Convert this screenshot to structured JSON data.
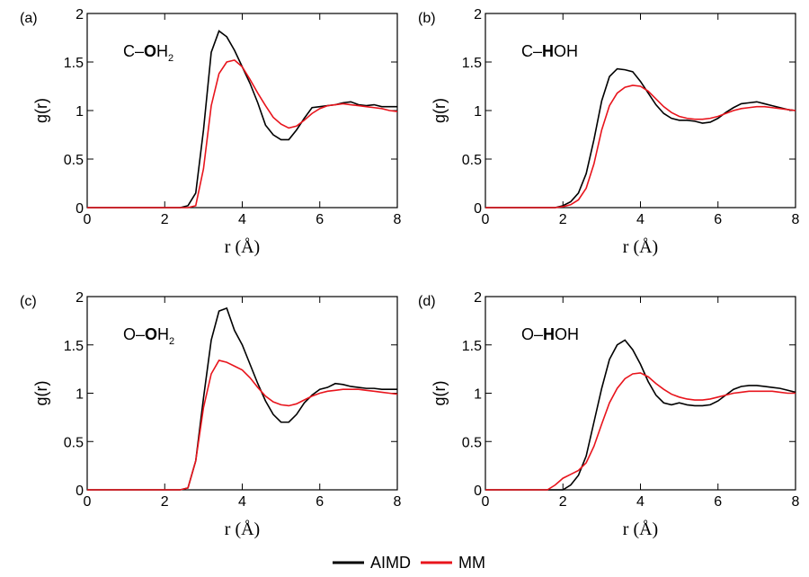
{
  "chart_data": [
    {
      "type": "line",
      "panel": "(a)",
      "annotation": {
        "prefix": "C–",
        "bold": "O",
        "suffix": "H",
        "subscript": "2"
      },
      "xlabel": "r (Å)",
      "ylabel": "g(r)",
      "xlim": [
        0,
        8
      ],
      "ylim": [
        0,
        2
      ],
      "xticks": [
        0,
        2,
        4,
        6,
        8
      ],
      "yticks": [
        0,
        0.5,
        1,
        1.5,
        2
      ],
      "x": [
        0,
        0.2,
        0.4,
        0.6,
        0.8,
        1,
        1.2,
        1.4,
        1.6,
        1.8,
        2,
        2.2,
        2.4,
        2.6,
        2.8,
        3,
        3.2,
        3.4,
        3.6,
        3.8,
        4,
        4.2,
        4.4,
        4.6,
        4.8,
        5,
        5.2,
        5.4,
        5.6,
        5.8,
        6,
        6.2,
        6.4,
        6.6,
        6.8,
        7,
        7.2,
        7.4,
        7.6,
        7.8,
        8
      ],
      "series": [
        {
          "name": "AIMD",
          "color": "#000000",
          "values": [
            0,
            0,
            0,
            0,
            0,
            0,
            0,
            0,
            0,
            0,
            0,
            0,
            0,
            0.02,
            0.15,
            0.8,
            1.6,
            1.82,
            1.76,
            1.62,
            1.45,
            1.28,
            1.08,
            0.85,
            0.75,
            0.7,
            0.7,
            0.8,
            0.92,
            1.03,
            1.04,
            1.05,
            1.06,
            1.08,
            1.09,
            1.06,
            1.05,
            1.06,
            1.04,
            1.04,
            1.04
          ]
        },
        {
          "name": "MM",
          "color": "#e8141c",
          "values": [
            0,
            0,
            0,
            0,
            0,
            0,
            0,
            0,
            0,
            0,
            0,
            0,
            0,
            0,
            0.02,
            0.4,
            1.05,
            1.38,
            1.5,
            1.52,
            1.45,
            1.32,
            1.18,
            1.05,
            0.93,
            0.86,
            0.82,
            0.84,
            0.9,
            0.97,
            1.02,
            1.05,
            1.06,
            1.07,
            1.06,
            1.05,
            1.04,
            1.03,
            1.02,
            1.0,
            0.99
          ]
        }
      ]
    },
    {
      "type": "line",
      "panel": "(b)",
      "annotation": {
        "prefix": "C–",
        "bold": "H",
        "suffix": "OH"
      },
      "xlabel": "r (Å)",
      "ylabel": "g(r)",
      "xlim": [
        0,
        8
      ],
      "ylim": [
        0,
        2
      ],
      "xticks": [
        0,
        2,
        4,
        6,
        8
      ],
      "yticks": [
        0,
        0.5,
        1,
        1.5,
        2
      ],
      "x": [
        0,
        0.2,
        0.4,
        0.6,
        0.8,
        1,
        1.2,
        1.4,
        1.6,
        1.8,
        2,
        2.2,
        2.4,
        2.6,
        2.8,
        3,
        3.2,
        3.4,
        3.6,
        3.8,
        4,
        4.2,
        4.4,
        4.6,
        4.8,
        5,
        5.2,
        5.4,
        5.6,
        5.8,
        6,
        6.2,
        6.4,
        6.6,
        6.8,
        7,
        7.2,
        7.4,
        7.6,
        7.8,
        8
      ],
      "series": [
        {
          "name": "AIMD",
          "color": "#000000",
          "values": [
            0,
            0,
            0,
            0,
            0,
            0,
            0,
            0,
            0,
            0,
            0.02,
            0.06,
            0.15,
            0.35,
            0.7,
            1.1,
            1.35,
            1.43,
            1.42,
            1.4,
            1.3,
            1.18,
            1.06,
            0.97,
            0.92,
            0.9,
            0.9,
            0.89,
            0.87,
            0.88,
            0.92,
            0.98,
            1.03,
            1.07,
            1.08,
            1.09,
            1.07,
            1.05,
            1.03,
            1.01,
            1.0
          ]
        },
        {
          "name": "MM",
          "color": "#e8141c",
          "values": [
            0,
            0,
            0,
            0,
            0,
            0,
            0,
            0,
            0,
            0,
            0.01,
            0.03,
            0.08,
            0.2,
            0.45,
            0.8,
            1.05,
            1.18,
            1.24,
            1.26,
            1.25,
            1.2,
            1.12,
            1.04,
            0.98,
            0.94,
            0.92,
            0.91,
            0.91,
            0.92,
            0.94,
            0.97,
            1.0,
            1.02,
            1.03,
            1.04,
            1.04,
            1.03,
            1.02,
            1.01,
            1.0
          ]
        }
      ]
    },
    {
      "type": "line",
      "panel": "(c)",
      "annotation": {
        "prefix": "O–",
        "bold": "O",
        "suffix": "H",
        "subscript": "2"
      },
      "xlabel": "r (Å)",
      "ylabel": "g(r)",
      "xlim": [
        0,
        8
      ],
      "ylim": [
        0,
        2
      ],
      "xticks": [
        0,
        2,
        4,
        6,
        8
      ],
      "yticks": [
        0,
        0.5,
        1,
        1.5,
        2
      ],
      "x": [
        0,
        0.2,
        0.4,
        0.6,
        0.8,
        1,
        1.2,
        1.4,
        1.6,
        1.8,
        2,
        2.2,
        2.4,
        2.6,
        2.8,
        3,
        3.2,
        3.4,
        3.6,
        3.8,
        4,
        4.2,
        4.4,
        4.6,
        4.8,
        5,
        5.2,
        5.4,
        5.6,
        5.8,
        6,
        6.2,
        6.4,
        6.6,
        6.8,
        7,
        7.2,
        7.4,
        7.6,
        7.8,
        8
      ],
      "series": [
        {
          "name": "AIMD",
          "color": "#000000",
          "values": [
            0,
            0,
            0,
            0,
            0,
            0,
            0,
            0,
            0,
            0,
            0,
            0,
            0,
            0.02,
            0.3,
            0.95,
            1.55,
            1.85,
            1.88,
            1.65,
            1.5,
            1.3,
            1.1,
            0.92,
            0.78,
            0.7,
            0.7,
            0.78,
            0.9,
            0.98,
            1.04,
            1.06,
            1.1,
            1.09,
            1.07,
            1.06,
            1.05,
            1.05,
            1.04,
            1.04,
            1.04
          ]
        },
        {
          "name": "MM",
          "color": "#e8141c",
          "values": [
            0,
            0,
            0,
            0,
            0,
            0,
            0,
            0,
            0,
            0,
            0,
            0,
            0,
            0.02,
            0.3,
            0.85,
            1.2,
            1.34,
            1.32,
            1.28,
            1.24,
            1.16,
            1.06,
            0.97,
            0.91,
            0.88,
            0.87,
            0.89,
            0.93,
            0.97,
            1.0,
            1.02,
            1.03,
            1.04,
            1.04,
            1.04,
            1.03,
            1.02,
            1.01,
            1.0,
            0.99
          ]
        }
      ]
    },
    {
      "type": "line",
      "panel": "(d)",
      "annotation": {
        "prefix": "O–",
        "bold": "H",
        "suffix": "OH"
      },
      "xlabel": "r (Å)",
      "ylabel": "g(r)",
      "xlim": [
        0,
        8
      ],
      "ylim": [
        0,
        2
      ],
      "xticks": [
        0,
        2,
        4,
        6,
        8
      ],
      "yticks": [
        0,
        0.5,
        1,
        1.5,
        2
      ],
      "x": [
        0,
        0.2,
        0.4,
        0.6,
        0.8,
        1,
        1.2,
        1.4,
        1.6,
        1.8,
        2,
        2.2,
        2.4,
        2.6,
        2.8,
        3,
        3.2,
        3.4,
        3.6,
        3.8,
        4,
        4.2,
        4.4,
        4.6,
        4.8,
        5,
        5.2,
        5.4,
        5.6,
        5.8,
        6,
        6.2,
        6.4,
        6.6,
        6.8,
        7,
        7.2,
        7.4,
        7.6,
        7.8,
        8
      ],
      "series": [
        {
          "name": "AIMD",
          "color": "#000000",
          "values": [
            0,
            0,
            0,
            0,
            0,
            0,
            0,
            0,
            0,
            0,
            0,
            0.05,
            0.15,
            0.35,
            0.7,
            1.05,
            1.35,
            1.5,
            1.55,
            1.45,
            1.3,
            1.12,
            0.98,
            0.9,
            0.88,
            0.9,
            0.88,
            0.87,
            0.87,
            0.88,
            0.92,
            0.98,
            1.04,
            1.07,
            1.08,
            1.08,
            1.07,
            1.06,
            1.05,
            1.03,
            1.01
          ]
        },
        {
          "name": "MM",
          "color": "#e8141c",
          "values": [
            0,
            0,
            0,
            0,
            0,
            0,
            0,
            0,
            0,
            0.05,
            0.12,
            0.16,
            0.2,
            0.28,
            0.45,
            0.68,
            0.9,
            1.05,
            1.15,
            1.2,
            1.21,
            1.17,
            1.1,
            1.04,
            0.99,
            0.96,
            0.94,
            0.93,
            0.93,
            0.94,
            0.96,
            0.98,
            1.0,
            1.01,
            1.02,
            1.02,
            1.02,
            1.02,
            1.01,
            1.0,
            1.0
          ]
        }
      ]
    }
  ]
}
